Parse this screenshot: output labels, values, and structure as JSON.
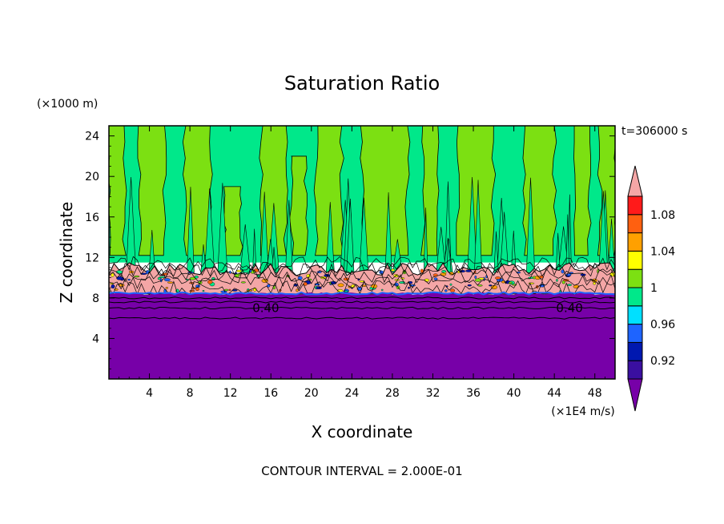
{
  "chart_data": {
    "type": "heatmap",
    "title": "Saturation Ratio",
    "xlabel": "X coordinate",
    "ylabel": "Z coordinate",
    "x_unit": "(×1E4 m/s)",
    "y_unit": "(×1000 m)",
    "time_label": "t=306000 s",
    "footer": "CONTOUR INTERVAL = 2.000E-01",
    "xlim": [
      0,
      50
    ],
    "ylim": [
      0,
      25
    ],
    "x_ticks": [
      4,
      8,
      12,
      16,
      20,
      24,
      28,
      32,
      36,
      40,
      44,
      48
    ],
    "y_ticks": [
      4,
      8,
      12,
      16,
      20,
      24
    ],
    "contour_labels": [
      {
        "text": "0.40",
        "x": 15.5,
        "y": 7.0
      },
      {
        "text": "0.40",
        "x": 45.5,
        "y": 7.0
      }
    ],
    "colorbar": {
      "colors": [
        "#7700a8",
        "#3a0fa0",
        "#0018b0",
        "#1e64ff",
        "#00e0ff",
        "#00e88a",
        "#7ce012",
        "#ffff00",
        "#ffa000",
        "#ff6010",
        "#ff1a1a",
        "#f4a6a6"
      ],
      "tick_labels": [
        "1.08",
        "1.04",
        "1",
        "0.96",
        "0.92"
      ],
      "tick_values": [
        1.08,
        1.04,
        1.0,
        0.96,
        0.92
      ],
      "extend": "both"
    },
    "layers": [
      {
        "name": "subsaturated",
        "z_min": 0,
        "z_max": 8.4,
        "color": "#7700a8"
      },
      {
        "name": "cloud-layer",
        "z_min": 8.4,
        "z_max": 11.5,
        "color": "#f4a6a6"
      },
      {
        "name": "near-saturated",
        "z_min": 11.5,
        "z_max": 25,
        "color": "#00e88a"
      },
      {
        "name": "slightly-supersaturated",
        "z_min": 11.5,
        "z_max": 25,
        "color": "#7ce012"
      }
    ],
    "upper_bands": [
      {
        "x0": 0,
        "x1": 1.5,
        "top": 25,
        "c": "#7ce012"
      },
      {
        "x0": 3,
        "x1": 5.5,
        "top": 25,
        "c": "#7ce012"
      },
      {
        "x0": 7.5,
        "x1": 10,
        "top": 25,
        "c": "#7ce012"
      },
      {
        "x0": 11.5,
        "x1": 13,
        "top": 19,
        "c": "#7ce012"
      },
      {
        "x0": 15,
        "x1": 17.5,
        "top": 25,
        "c": "#7ce012"
      },
      {
        "x0": 18,
        "x1": 19.5,
        "top": 22,
        "c": "#7ce012"
      },
      {
        "x0": 20.5,
        "x1": 23,
        "top": 25,
        "c": "#7ce012"
      },
      {
        "x0": 25,
        "x1": 29.5,
        "top": 25,
        "c": "#7ce012"
      },
      {
        "x0": 31,
        "x1": 32.5,
        "top": 25,
        "c": "#7ce012"
      },
      {
        "x0": 34.5,
        "x1": 38,
        "top": 25,
        "c": "#7ce012"
      },
      {
        "x0": 41,
        "x1": 44,
        "top": 25,
        "c": "#7ce012"
      },
      {
        "x0": 46,
        "x1": 47.5,
        "top": 25,
        "c": "#7ce012"
      },
      {
        "x0": 48.5,
        "x1": 50,
        "top": 25,
        "c": "#7ce012"
      }
    ]
  }
}
